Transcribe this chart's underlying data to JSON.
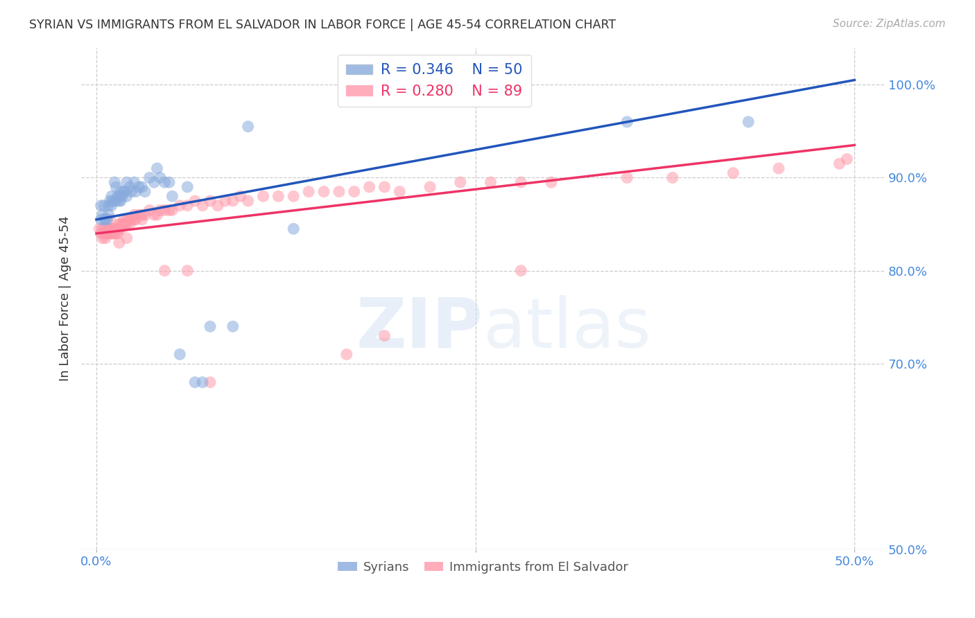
{
  "title": "SYRIAN VS IMMIGRANTS FROM EL SALVADOR IN LABOR FORCE | AGE 45-54 CORRELATION CHART",
  "source": "Source: ZipAtlas.com",
  "ylabel": "In Labor Force | Age 45-54",
  "x_ticks_labels": [
    "0.0%",
    "50.0%"
  ],
  "x_ticks_pos": [
    0.0,
    0.5
  ],
  "y_ticks_labels": [
    "100.0%",
    "90.0%",
    "80.0%",
    "70.0%",
    "50.0%"
  ],
  "y_ticks_pos": [
    1.0,
    0.9,
    0.8,
    0.7,
    0.5
  ],
  "xlim": [
    -0.01,
    0.52
  ],
  "ylim": [
    0.5,
    1.04
  ],
  "blue_color": "#88aadd",
  "pink_color": "#ff99aa",
  "blue_line_color": "#2255bb",
  "pink_line_color": "#ee3366",
  "legend_blue_R": "R = 0.346",
  "legend_blue_N": "N = 50",
  "legend_pink_R": "R = 0.280",
  "legend_pink_N": "N = 89",
  "title_color": "#333333",
  "axis_tick_color": "#4488dd",
  "background_color": "#ffffff",
  "grid_color": "#cccccc",
  "syrians_x": [
    0.003,
    0.003,
    0.004,
    0.005,
    0.005,
    0.006,
    0.007,
    0.008,
    0.008,
    0.009,
    0.01,
    0.01,
    0.011,
    0.012,
    0.013,
    0.013,
    0.014,
    0.015,
    0.015,
    0.016,
    0.016,
    0.017,
    0.018,
    0.019,
    0.02,
    0.02,
    0.022,
    0.023,
    0.025,
    0.026,
    0.028,
    0.03,
    0.032,
    0.035,
    0.038,
    0.04,
    0.042,
    0.045,
    0.048,
    0.05,
    0.055,
    0.06,
    0.065,
    0.07,
    0.075,
    0.09,
    0.1,
    0.13,
    0.35,
    0.43
  ],
  "syrians_y": [
    0.855,
    0.87,
    0.86,
    0.855,
    0.87,
    0.855,
    0.855,
    0.86,
    0.87,
    0.875,
    0.87,
    0.88,
    0.875,
    0.895,
    0.89,
    0.875,
    0.88,
    0.88,
    0.875,
    0.885,
    0.875,
    0.88,
    0.885,
    0.885,
    0.895,
    0.88,
    0.89,
    0.885,
    0.895,
    0.885,
    0.89,
    0.89,
    0.885,
    0.9,
    0.895,
    0.91,
    0.9,
    0.895,
    0.895,
    0.88,
    0.71,
    0.89,
    0.68,
    0.68,
    0.74,
    0.74,
    0.955,
    0.845,
    0.96,
    0.96
  ],
  "salvador_x": [
    0.002,
    0.003,
    0.004,
    0.004,
    0.005,
    0.005,
    0.006,
    0.006,
    0.007,
    0.007,
    0.008,
    0.008,
    0.009,
    0.01,
    0.01,
    0.011,
    0.011,
    0.012,
    0.012,
    0.013,
    0.013,
    0.014,
    0.015,
    0.015,
    0.016,
    0.016,
    0.017,
    0.018,
    0.018,
    0.019,
    0.02,
    0.02,
    0.022,
    0.022,
    0.023,
    0.025,
    0.025,
    0.026,
    0.028,
    0.03,
    0.03,
    0.032,
    0.035,
    0.038,
    0.04,
    0.042,
    0.045,
    0.048,
    0.05,
    0.055,
    0.06,
    0.065,
    0.07,
    0.075,
    0.08,
    0.085,
    0.09,
    0.095,
    0.1,
    0.11,
    0.12,
    0.13,
    0.14,
    0.15,
    0.16,
    0.17,
    0.18,
    0.19,
    0.2,
    0.22,
    0.24,
    0.26,
    0.28,
    0.3,
    0.35,
    0.38,
    0.42,
    0.45,
    0.49,
    0.495,
    0.165,
    0.06,
    0.075,
    0.02,
    0.015,
    0.009,
    0.045,
    0.28,
    0.19
  ],
  "salvador_y": [
    0.845,
    0.84,
    0.835,
    0.845,
    0.845,
    0.84,
    0.835,
    0.84,
    0.84,
    0.845,
    0.84,
    0.845,
    0.84,
    0.845,
    0.84,
    0.845,
    0.84,
    0.845,
    0.84,
    0.84,
    0.845,
    0.84,
    0.85,
    0.845,
    0.85,
    0.845,
    0.85,
    0.855,
    0.85,
    0.85,
    0.855,
    0.85,
    0.855,
    0.85,
    0.855,
    0.86,
    0.855,
    0.855,
    0.86,
    0.86,
    0.855,
    0.86,
    0.865,
    0.86,
    0.86,
    0.865,
    0.865,
    0.865,
    0.865,
    0.87,
    0.87,
    0.875,
    0.87,
    0.875,
    0.87,
    0.875,
    0.875,
    0.88,
    0.875,
    0.88,
    0.88,
    0.88,
    0.885,
    0.885,
    0.885,
    0.885,
    0.89,
    0.89,
    0.885,
    0.89,
    0.895,
    0.895,
    0.895,
    0.895,
    0.9,
    0.9,
    0.905,
    0.91,
    0.915,
    0.92,
    0.71,
    0.8,
    0.68,
    0.835,
    0.83,
    0.855,
    0.8,
    0.8,
    0.73
  ]
}
